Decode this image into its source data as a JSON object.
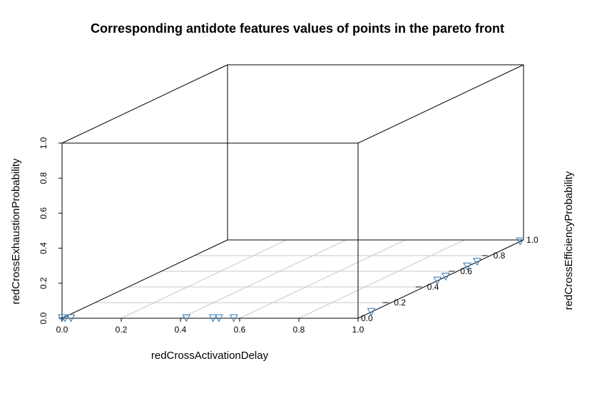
{
  "chart_data": {
    "type": "scatter",
    "title": "Corresponding antidote features values of points in the pareto front",
    "xlabel": "redCrossActivationDelay",
    "ylabel": "redCrossEfficiencyProbability",
    "zlabel": "redCrossExhaustionProbability",
    "xlim": [
      0,
      1
    ],
    "ylim": [
      0,
      1
    ],
    "zlim": [
      0,
      1
    ],
    "x_ticks": [
      "0.0",
      "0.2",
      "0.4",
      "0.6",
      "0.8",
      "1.0"
    ],
    "y_ticks": [
      "0.0",
      "0.2",
      "0.4",
      "0.6",
      "0.8",
      "1.0"
    ],
    "z_ticks": [
      "0.0",
      "0.2",
      "0.4",
      "0.6",
      "0.8",
      "1.0"
    ],
    "marker": "triangle-down",
    "marker_color": "#3d7fb8",
    "grid": true,
    "points": [
      {
        "x": 0.0,
        "y": 0.0,
        "z": 0.0
      },
      {
        "x": 0.01,
        "y": 0.0,
        "z": 0.0
      },
      {
        "x": 0.03,
        "y": 0.0,
        "z": 0.0
      },
      {
        "x": 0.42,
        "y": 0.0,
        "z": 0.0
      },
      {
        "x": 0.51,
        "y": 0.0,
        "z": 0.0
      },
      {
        "x": 0.53,
        "y": 0.0,
        "z": 0.0
      },
      {
        "x": 0.58,
        "y": 0.0,
        "z": 0.0
      },
      {
        "x": 1.0,
        "y": 0.08,
        "z": 0.0
      },
      {
        "x": 1.0,
        "y": 0.48,
        "z": 0.0
      },
      {
        "x": 1.0,
        "y": 0.66,
        "z": 0.0
      },
      {
        "x": 1.0,
        "y": 0.53,
        "z": 0.0
      },
      {
        "x": 1.0,
        "y": 0.72,
        "z": 0.0
      },
      {
        "x": 1.0,
        "y": 0.98,
        "z": 0.0
      }
    ]
  }
}
